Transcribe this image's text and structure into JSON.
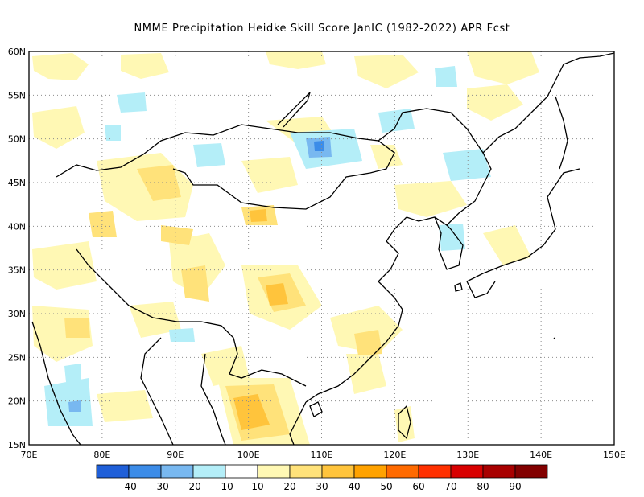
{
  "title": "NMME  Precipitation Heidke Skill Score JanIC (1982-2022) APR Fcst",
  "map": {
    "lon_range": [
      70,
      150
    ],
    "lat_range": [
      15,
      60
    ],
    "lon_ticks": [
      "70E",
      "80E",
      "90E",
      "100E",
      "110E",
      "120E",
      "130E",
      "140E",
      "150E"
    ],
    "lat_ticks": [
      "15N",
      "20N",
      "25N",
      "30N",
      "35N",
      "40N",
      "45N",
      "50N",
      "55N",
      "60N"
    ],
    "gridlines": "dotted"
  },
  "colorbar": {
    "labels": [
      "-40",
      "-30",
      "-20",
      "-10",
      "10",
      "20",
      "30",
      "40",
      "50",
      "60",
      "70",
      "80",
      "90"
    ],
    "colors": [
      "#1f5fd8",
      "#3c8ce8",
      "#78b8f0",
      "#b4eef8",
      "#ffffff",
      "#fff8b4",
      "#ffe27a",
      "#ffc43c",
      "#ffa200",
      "#ff6a00",
      "#ff3000",
      "#d80000",
      "#a80000",
      "#820000"
    ]
  },
  "colors": {
    "border": "#000000",
    "grid": "#8c8c8c"
  }
}
